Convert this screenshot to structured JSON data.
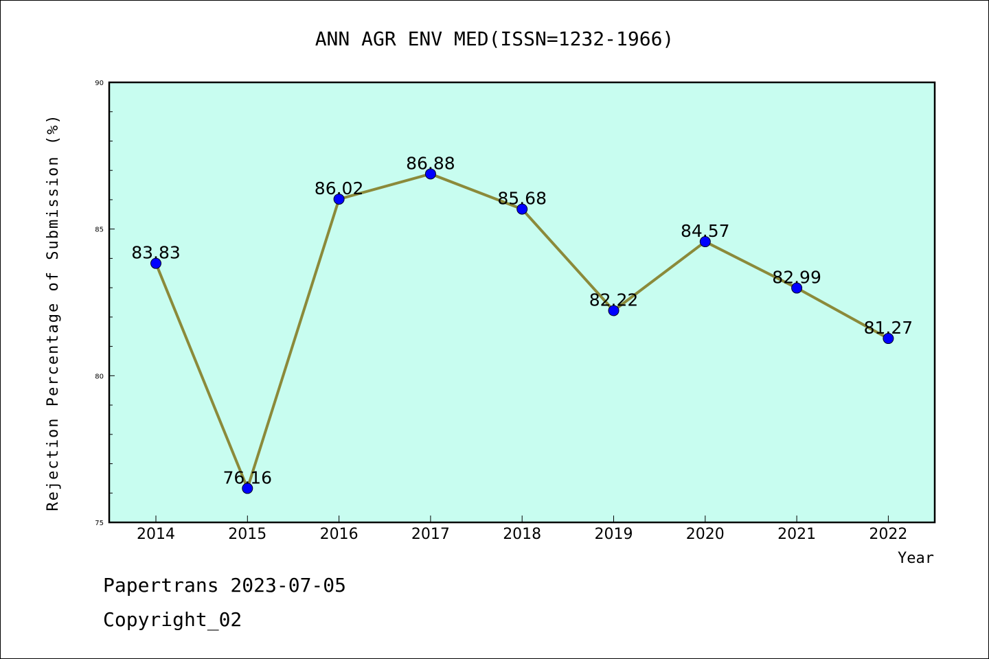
{
  "chart_data": {
    "type": "line",
    "title": "ANN AGR ENV MED(ISSN=1232-1966)",
    "xlabel": "Year",
    "ylabel": "Rejection Percentage of Submission (%)",
    "categories": [
      "2014",
      "2015",
      "2016",
      "2017",
      "2018",
      "2019",
      "2020",
      "2021",
      "2022"
    ],
    "series": [
      {
        "values": [
          83.83,
          76.16,
          86.02,
          86.88,
          85.68,
          82.22,
          84.57,
          82.99,
          81.27
        ],
        "labels": [
          "83.83",
          "76.16",
          "86.02",
          "86.88",
          "85.68",
          "82.22",
          "84.57",
          "82.99",
          "81.27"
        ]
      }
    ],
    "ylim": [
      75,
      90
    ],
    "yticks": [
      "75",
      "80",
      "85",
      "90"
    ],
    "grid": false,
    "legend": "none",
    "colors": {
      "plot_background": "#c8fdf0",
      "line": "#8b8a3a",
      "marker": "#0000ff"
    }
  },
  "footer": {
    "line1": "Papertrans 2023-07-05",
    "line2": "Copyright_02"
  }
}
